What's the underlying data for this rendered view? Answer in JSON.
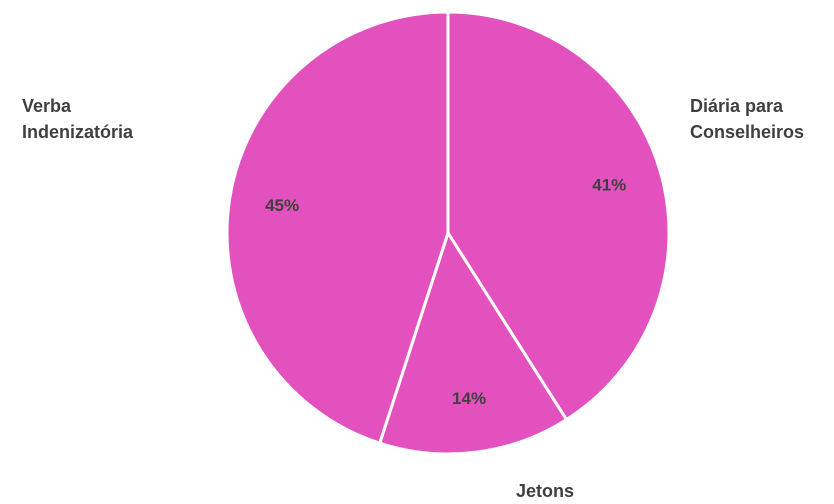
{
  "chart_data": {
    "type": "pie",
    "categories": [
      "Diária para Conselheiros",
      "Jetons",
      "Verba Indenizatória"
    ],
    "values": [
      41,
      14,
      45
    ],
    "value_labels": [
      "41%",
      "14%",
      "45%"
    ],
    "colors": [
      "#e251be",
      "#e251be",
      "#e251be"
    ],
    "start_angle": "12 o'clock",
    "direction": "clockwise",
    "legend": "none",
    "category_labels": {
      "diaria": "Diária para Conselheiros",
      "jetons": "Jetons",
      "verba": "Verba Indenizatória"
    }
  }
}
